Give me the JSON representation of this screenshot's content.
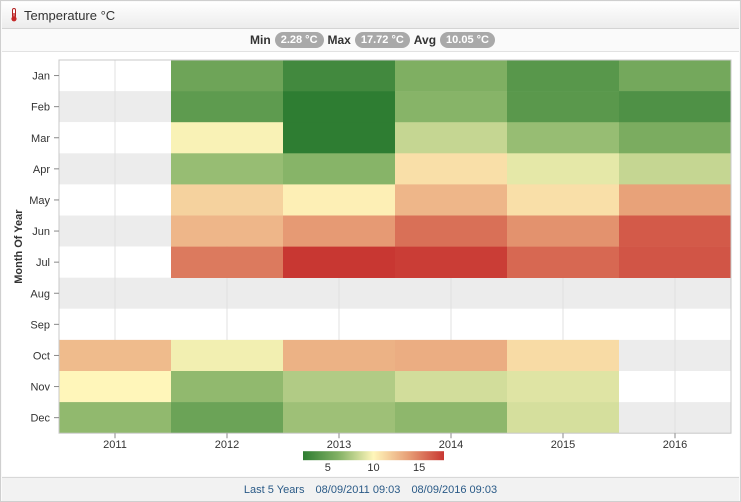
{
  "header": {
    "title": "Temperature °C",
    "icon": "thermometer-icon"
  },
  "stats": {
    "min_label": "Min",
    "min_value": "2.28 °C",
    "max_label": "Max",
    "max_value": "17.72 °C",
    "avg_label": "Avg",
    "avg_value": "10.05 °C"
  },
  "footer": {
    "range_label": "Last 5 Years",
    "start": "08/09/2011 09:03",
    "end": "08/09/2016 09:03"
  },
  "chart_data": {
    "type": "heatmap",
    "ylabel": "Month Of Year",
    "x": [
      "2011",
      "2012",
      "2013",
      "2014",
      "2015",
      "2016"
    ],
    "y": [
      "Jan",
      "Feb",
      "Mar",
      "Apr",
      "May",
      "Jun",
      "Jul",
      "Aug",
      "Sep",
      "Oct",
      "Nov",
      "Dec"
    ],
    "colorbar": {
      "ticks": [
        5,
        10,
        15
      ],
      "min": 2.28,
      "max": 17.72
    },
    "values": [
      [
        null,
        5.2,
        3.2,
        6.0,
        4.2,
        5.5
      ],
      [
        null,
        4.5,
        2.3,
        6.3,
        4.3,
        3.8
      ],
      [
        null,
        9.8,
        2.28,
        8.2,
        6.8,
        5.8
      ],
      [
        null,
        6.8,
        6.3,
        11.0,
        9.2,
        8.2
      ],
      [
        null,
        11.6,
        10.3,
        12.8,
        11.0,
        13.7
      ],
      [
        null,
        12.8,
        14.0,
        15.6,
        14.3,
        16.4
      ],
      [
        null,
        15.2,
        17.72,
        17.5,
        15.9,
        16.6
      ],
      [
        null,
        null,
        null,
        null,
        null,
        null
      ],
      [
        null,
        null,
        null,
        null,
        null,
        null
      ],
      [
        12.6,
        9.6,
        13.0,
        13.2,
        11.2,
        null
      ],
      [
        10.0,
        6.6,
        7.6,
        8.6,
        9.0,
        null
      ],
      [
        6.6,
        5.1,
        7.0,
        6.5,
        8.7,
        null
      ]
    ]
  }
}
